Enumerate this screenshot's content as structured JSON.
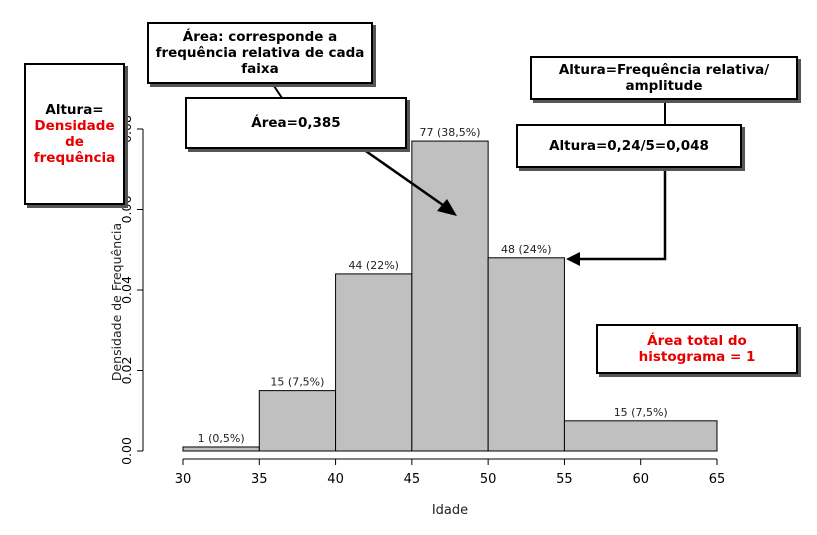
{
  "chart_data": {
    "type": "bar",
    "bins": [
      {
        "from": 30,
        "to": 35,
        "value": 0.001,
        "label": "1 (0,5%)"
      },
      {
        "from": 35,
        "to": 40,
        "value": 0.015,
        "label": "15 (7,5%)"
      },
      {
        "from": 40,
        "to": 45,
        "value": 0.044,
        "label": "44 (22%)"
      },
      {
        "from": 45,
        "to": 50,
        "value": 0.077,
        "label": "77 (38,5%)"
      },
      {
        "from": 50,
        "to": 55,
        "value": 0.048,
        "label": "48 (24%)"
      },
      {
        "from": 55,
        "to": 65,
        "value": 0.0075,
        "label": "15 (7,5%)"
      }
    ],
    "xlabel": "Idade",
    "ylabel": "Densidade de Frequência",
    "xlim": [
      30,
      65
    ],
    "ylim": [
      0,
      0.08
    ],
    "xticks": [
      "30",
      "35",
      "40",
      "45",
      "50",
      "55",
      "60",
      "65"
    ],
    "yticks": [
      "0.00",
      "0.02",
      "0.04",
      "0.06",
      "0.08"
    ],
    "bar_color": "#c0c0c0",
    "grid": false
  },
  "annotations": {
    "altura_title": "Altura=",
    "altura_red_1": "Densidade",
    "altura_red_2": "de",
    "altura_red_3": "frequência",
    "area_desc": "Área: corresponde a frequência relativa de cada faixa",
    "area_value": "Área=0,385",
    "altura_formula": "Altura=Frequência relativa/ amplitude",
    "altura_value": "Altura=0,24/5=0,048",
    "area_total": "Área total do histograma = 1",
    "red_color": "#e60000"
  }
}
